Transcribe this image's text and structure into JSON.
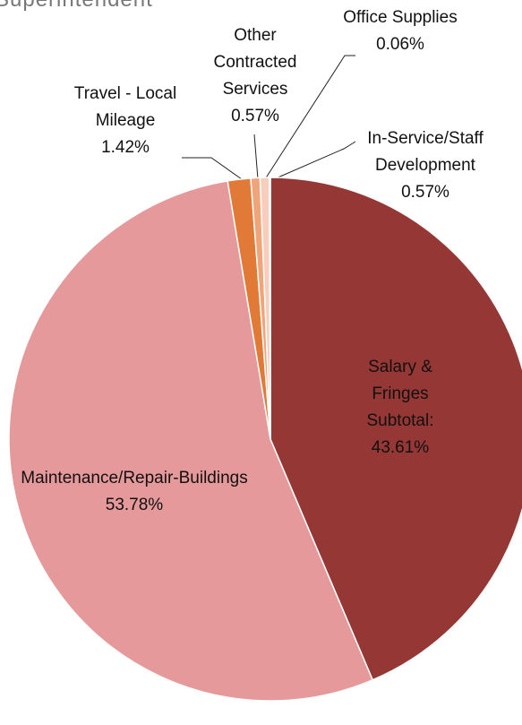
{
  "chart_data": {
    "type": "pie",
    "title": "Superintendent",
    "categories": [
      "Salary & Fringes Subtotal:",
      "Maintenance/Repair-Buildings",
      "Travel - Local Mileage",
      "Other Contracted Services",
      "In-Service/Staff Development",
      "Office Supplies"
    ],
    "values": [
      43.61,
      53.78,
      1.42,
      0.57,
      0.57,
      0.06
    ],
    "value_labels": [
      "43.61%",
      "53.78%",
      "1.42%",
      "0.57%",
      "0.57%",
      "0.06%"
    ],
    "colors": [
      "#953735",
      "#e6999a",
      "#e07a36",
      "#f0a47a",
      "#f9cdbb",
      "#fde3da"
    ]
  }
}
